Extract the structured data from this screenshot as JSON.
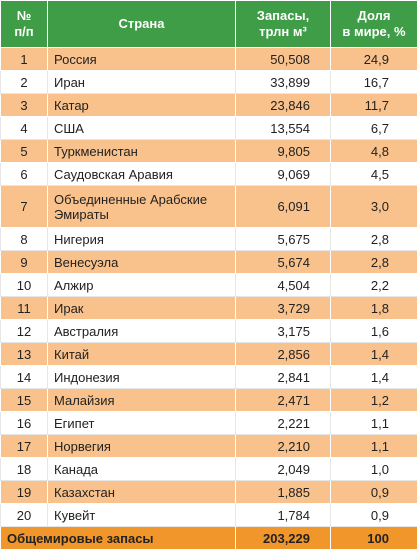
{
  "table": {
    "header": [
      "№\nп/п",
      "Страна",
      "Запасы,\nтрлн м³",
      "Доля\nв мире, %"
    ],
    "rows": [
      [
        "1",
        "Россия",
        "50,508",
        "24,9"
      ],
      [
        "2",
        "Иран",
        "33,899",
        "16,7"
      ],
      [
        "3",
        "Катар",
        "23,846",
        "11,7"
      ],
      [
        "4",
        "США",
        "13,554",
        "6,7"
      ],
      [
        "5",
        "Туркменистан",
        "9,805",
        "4,8"
      ],
      [
        "6",
        "Саудовская Аравия",
        "9,069",
        "4,5"
      ],
      [
        "7",
        "Объединенные Арабские Эмираты",
        "6,091",
        "3,0"
      ],
      [
        "8",
        "Нигерия",
        "5,675",
        "2,8"
      ],
      [
        "9",
        "Венесуэла",
        "5,674",
        "2,8"
      ],
      [
        "10",
        "Алжир",
        "4,504",
        "2,2"
      ],
      [
        "11",
        "Ирак",
        "3,729",
        "1,8"
      ],
      [
        "12",
        "Австралия",
        "3,175",
        "1,6"
      ],
      [
        "13",
        "Китай",
        "2,856",
        "1,4"
      ],
      [
        "14",
        "Индонезия",
        "2,841",
        "1,4"
      ],
      [
        "15",
        "Малайзия",
        "2,471",
        "1,2"
      ],
      [
        "16",
        "Египет",
        "2,221",
        "1,1"
      ],
      [
        "17",
        "Норвегия",
        "2,210",
        "1,1"
      ],
      [
        "18",
        "Канада",
        "2,049",
        "1,0"
      ],
      [
        "19",
        "Казахстан",
        "1,885",
        "0,9"
      ],
      [
        "20",
        "Кувейт",
        "1,784",
        "0,9"
      ]
    ],
    "total": [
      "Общемировые запасы",
      "203,229",
      "100"
    ]
  }
}
